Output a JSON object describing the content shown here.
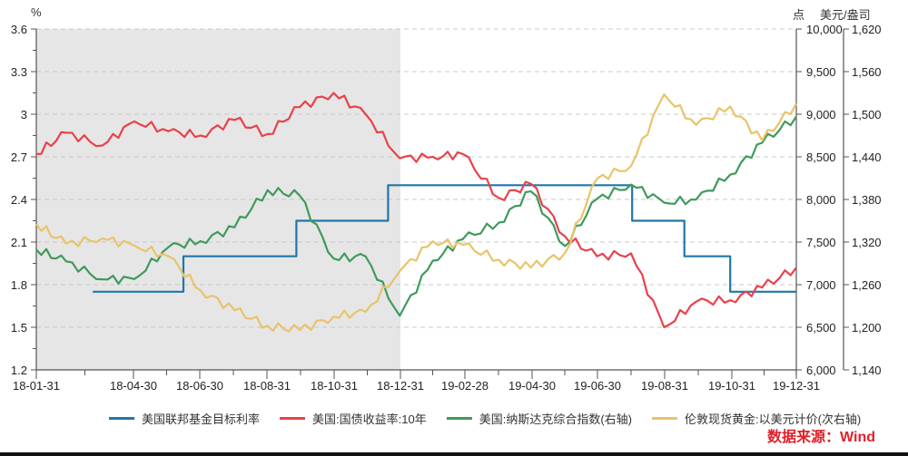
{
  "chart_data": {
    "type": "line",
    "title": "",
    "left_axis": {
      "unit": "%",
      "ticks": [
        "3.6",
        "3.3",
        "3",
        "2.7",
        "2.4",
        "2.1",
        "1.8",
        "1.5",
        "1.2"
      ],
      "range": [
        1.2,
        3.6
      ]
    },
    "right_axis": {
      "unit": "点",
      "ticks": [
        "10,000",
        "9,500",
        "9,000",
        "8,500",
        "8,000",
        "7,500",
        "7,000",
        "6,500",
        "6,000"
      ],
      "range": [
        6000,
        10000
      ]
    },
    "right_axis2": {
      "unit": "美元/盎司",
      "ticks": [
        "1,620",
        "1,560",
        "1,500",
        "1,440",
        "1,380",
        "1,320",
        "1,260",
        "1,200",
        "1,140"
      ],
      "range": [
        1140,
        1620
      ]
    },
    "x_ticks": [
      "18-01-31",
      "18-04-30",
      "18-06-30",
      "18-08-31",
      "18-10-31",
      "18-12-31",
      "19-02-28",
      "19-04-30",
      "19-06-30",
      "19-08-31",
      "19-10-31",
      "19-12-31"
    ],
    "shaded_region": {
      "from": "18-01-31",
      "to": "18-12-31",
      "color": "#e6e6e6"
    },
    "grid": "dashed horizontal",
    "legend_position": "bottom",
    "series": [
      {
        "name": "美国联邦基金目标利率",
        "axis": "left",
        "color": "#1f77a8",
        "steps": [
          {
            "from": "18-03-22",
            "value": 1.75
          },
          {
            "from": "18-06-14",
            "value": 2.0
          },
          {
            "from": "18-09-27",
            "value": 2.25
          },
          {
            "from": "18-12-20",
            "value": 2.5
          },
          {
            "from": "19-08-01",
            "value": 2.25
          },
          {
            "from": "19-09-19",
            "value": 2.0
          },
          {
            "from": "19-10-31",
            "value": 1.75
          },
          {
            "to": "19-12-31",
            "value": 1.75
          }
        ]
      },
      {
        "name": "美国:国债收益率:10年",
        "axis": "left",
        "color": "#e8424a",
        "x": [
          "18-01-31",
          "18-02-28",
          "18-03-31",
          "18-04-30",
          "18-05-31",
          "18-06-30",
          "18-07-31",
          "18-08-31",
          "18-09-30",
          "18-10-31",
          "18-11-30",
          "18-12-31",
          "19-01-31",
          "19-02-28",
          "19-03-31",
          "19-04-30",
          "19-05-31",
          "19-06-30",
          "19-07-31",
          "19-08-31",
          "19-09-30",
          "19-10-31",
          "19-11-30",
          "19-12-31"
        ],
        "values": [
          2.72,
          2.87,
          2.78,
          2.95,
          2.88,
          2.85,
          2.96,
          2.86,
          3.05,
          3.15,
          3.0,
          2.69,
          2.7,
          2.72,
          2.41,
          2.51,
          2.14,
          2.0,
          2.02,
          1.5,
          1.68,
          1.69,
          1.78,
          1.92
        ]
      },
      {
        "name": "美国:纳斯达克综合指数(右轴)",
        "axis": "right",
        "color": "#3f9a5c",
        "x": [
          "18-01-31",
          "18-02-28",
          "18-03-31",
          "18-04-30",
          "18-05-31",
          "18-06-30",
          "18-07-31",
          "18-08-31",
          "18-09-30",
          "18-10-31",
          "18-11-30",
          "18-12-31",
          "19-01-31",
          "19-02-28",
          "19-03-31",
          "19-04-30",
          "19-05-31",
          "19-06-30",
          "19-07-31",
          "19-08-31",
          "19-09-30",
          "19-10-31",
          "19-11-30",
          "19-12-31"
        ],
        "values": [
          7411,
          7273,
          7063,
          7066,
          7442,
          7510,
          7672,
          8110,
          8046,
          7306,
          7331,
          6635,
          7282,
          7533,
          7729,
          8095,
          7453,
          8006,
          8175,
          7963,
          7999,
          8292,
          8665,
          8973
        ]
      },
      {
        "name": "伦敦现货黄金:以美元计价(次右轴)",
        "axis": "right2",
        "color": "#e8c46a",
        "x": [
          "18-01-31",
          "18-02-28",
          "18-03-31",
          "18-04-30",
          "18-05-31",
          "18-06-30",
          "18-07-31",
          "18-08-31",
          "18-09-30",
          "18-10-31",
          "18-11-30",
          "18-12-31",
          "19-01-31",
          "19-02-28",
          "19-03-31",
          "19-04-30",
          "19-05-31",
          "19-06-30",
          "19-07-31",
          "19-08-31",
          "19-09-30",
          "19-10-31",
          "19-11-30",
          "19-12-31"
        ],
        "values": [
          1345,
          1318,
          1325,
          1315,
          1300,
          1252,
          1224,
          1202,
          1196,
          1215,
          1222,
          1279,
          1321,
          1316,
          1295,
          1284,
          1305,
          1409,
          1427,
          1528,
          1485,
          1511,
          1463,
          1515
        ]
      }
    ]
  },
  "units": {
    "left": "%",
    "right": "点",
    "right2": "美元/盎司"
  },
  "legend": [
    {
      "label": "美国联邦基金目标利率",
      "color": "#1f77a8"
    },
    {
      "label": "美国:国债收益率:10年",
      "color": "#e8424a"
    },
    {
      "label": "美国:纳斯达克综合指数(右轴)",
      "color": "#3f9a5c"
    },
    {
      "label": "伦敦现货黄金:以美元计价(次右轴)",
      "color": "#e8c46a"
    }
  ],
  "source": "数据来源：Wind"
}
